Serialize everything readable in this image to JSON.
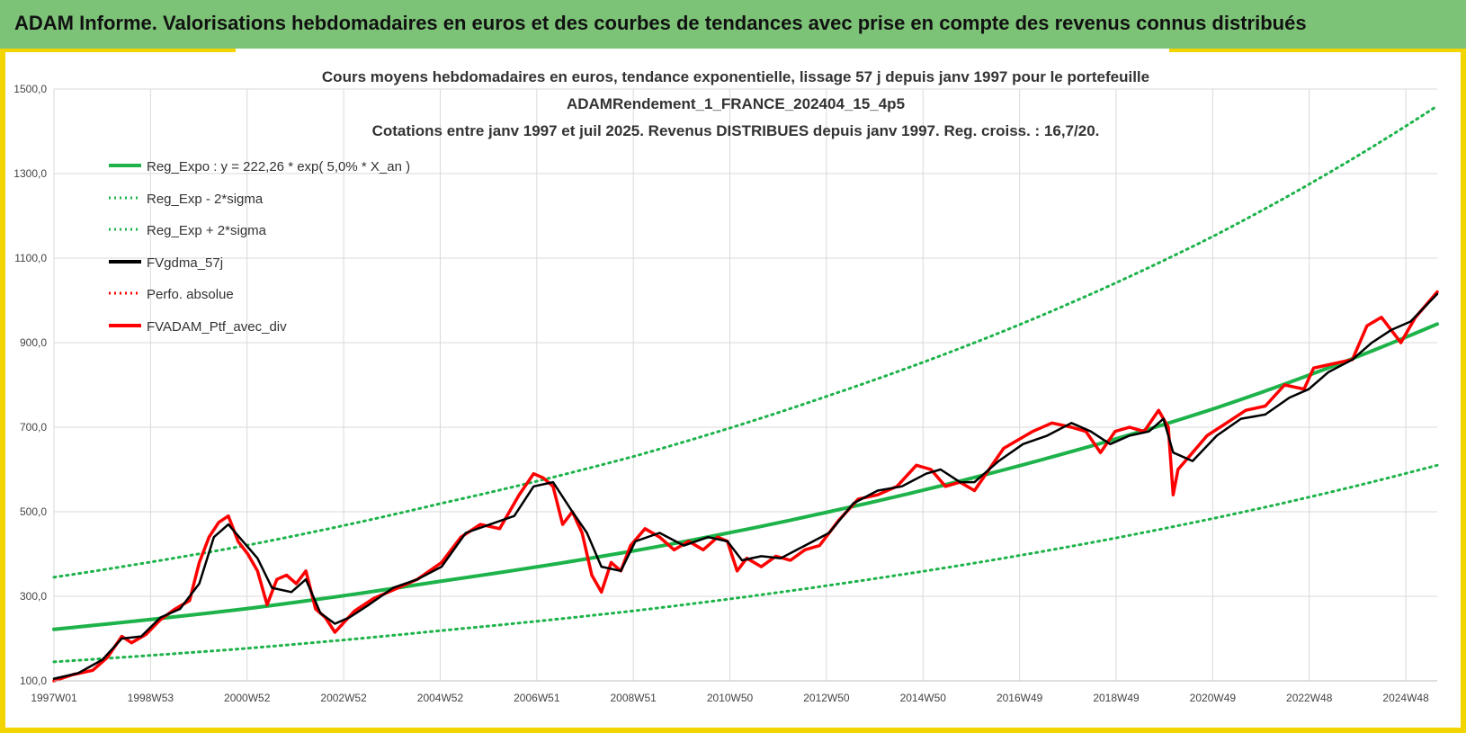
{
  "header": {
    "title": "ADAM Informe. Valorisations hebdomadaires en euros et des courbes de tendances avec prise en compte des revenus connus distribués"
  },
  "colors": {
    "banner": "#7cc377",
    "frame": "#f2d400",
    "trend_green": "#1db34a",
    "smooth_black": "#000000",
    "portfolio_red": "#ff0000",
    "grid": "#d9d9d9"
  },
  "chart_data": {
    "type": "line",
    "title_lines": [
      "Cours moyens hebdomadaires  en euros, tendance exponentielle, lissage 57 j depuis janv 1997 pour le portefeuille",
      "ADAMRendement_1_FRANCE_202404_15_4p5",
      "Cotations  entre janv 1997 et juil 2025. Revenus DISTRIBUES depuis janv 1997. Reg. croiss. : 16,7/20."
    ],
    "ylim": [
      100,
      1500
    ],
    "y_ticks": [
      "100,0",
      "300,0",
      "500,0",
      "700,0",
      "900,0",
      "1100,0",
      "1300,0",
      "1500,0"
    ],
    "x_ticks": [
      "1997W01",
      "1998W53",
      "2000W52",
      "2002W52",
      "2004W52",
      "2006W51",
      "2008W51",
      "2010W50",
      "2012W50",
      "2014W50",
      "2016W49",
      "2018W49",
      "2020W49",
      "2022W48",
      "2024W48"
    ],
    "x_range_years": [
      1997.0,
      2025.55
    ],
    "grid": true,
    "legend_position": "top-left",
    "legend": [
      {
        "label": "Reg_Expo : y = 222,26 * exp( 5,0% *  X_an )",
        "style": "solid-green"
      },
      {
        "label": "Reg_Exp - 2*sigma",
        "style": "dotted-green"
      },
      {
        "label": "Reg_Exp + 2*sigma",
        "style": "dotted-green"
      },
      {
        "label": "FVgdma_57j",
        "style": "solid-black"
      },
      {
        "label": "Perfo. absolue",
        "style": "dotted-red"
      },
      {
        "label": "FVADAM_Ptf_avec_div",
        "style": "solid-red"
      }
    ],
    "series": [
      {
        "name": "Reg_Expo : y = 222,26 * exp( 5,0% *  X_an )",
        "x": [
          1997,
          2001,
          2005,
          2009,
          2013,
          2017,
          2021,
          2025.55
        ],
        "y": [
          222,
          271,
          336,
          408,
          500,
          611,
          746,
          944
        ]
      },
      {
        "name": "Reg_Exp - 2*sigma",
        "x": [
          1997,
          2001,
          2005,
          2009,
          2013,
          2017,
          2021,
          2025.55
        ],
        "y": [
          145,
          177,
          219,
          266,
          326,
          398,
          486,
          610
        ]
      },
      {
        "name": "Reg_Exp + 2*sigma",
        "x": [
          1997,
          2001,
          2005,
          2009,
          2013,
          2017,
          2021,
          2025.55
        ],
        "y": [
          345,
          421,
          520,
          632,
          775,
          946,
          1156,
          1460
        ]
      },
      {
        "name": "FVgdma_57j",
        "x": [
          1997.0,
          1997.5,
          1998.0,
          1998.4,
          1998.8,
          1999.2,
          1999.6,
          2000.0,
          2000.3,
          2000.6,
          2000.9,
          2001.2,
          2001.5,
          2001.9,
          2002.2,
          2002.5,
          2002.8,
          2003.1,
          2003.5,
          2004.0,
          2004.5,
          2005.0,
          2005.5,
          2006.0,
          2006.5,
          2006.9,
          2007.3,
          2007.7,
          2008.0,
          2008.3,
          2008.7,
          2009.0,
          2009.5,
          2010.0,
          2010.5,
          2010.9,
          2011.2,
          2011.6,
          2012.0,
          2012.5,
          2013.0,
          2013.5,
          2014.0,
          2014.5,
          2015.0,
          2015.3,
          2015.7,
          2016.0,
          2016.5,
          2017.0,
          2017.5,
          2018.0,
          2018.4,
          2018.8,
          2019.2,
          2019.6,
          2019.9,
          2020.1,
          2020.5,
          2021.0,
          2021.5,
          2022.0,
          2022.5,
          2022.9,
          2023.3,
          2023.8,
          2024.2,
          2024.6,
          2025.0,
          2025.55
        ],
        "y": [
          105,
          118,
          150,
          200,
          205,
          250,
          270,
          330,
          440,
          470,
          430,
          390,
          320,
          310,
          340,
          260,
          235,
          250,
          280,
          320,
          340,
          370,
          450,
          470,
          490,
          560,
          570,
          500,
          450,
          370,
          360,
          430,
          450,
          420,
          440,
          430,
          385,
          395,
          390,
          420,
          450,
          520,
          550,
          560,
          590,
          600,
          570,
          570,
          620,
          660,
          680,
          710,
          690,
          660,
          680,
          690,
          720,
          640,
          620,
          680,
          720,
          730,
          770,
          790,
          830,
          860,
          900,
          930,
          950,
          1015
        ]
      },
      {
        "name": "FVADAM_Ptf_avec_div",
        "x": [
          1997.0,
          1997.4,
          1997.8,
          1998.1,
          1998.4,
          1998.6,
          1998.9,
          1999.2,
          1999.5,
          1999.8,
          2000.0,
          2000.2,
          2000.4,
          2000.6,
          2000.8,
          2001.0,
          2001.2,
          2001.4,
          2001.6,
          2001.8,
          2002.0,
          2002.2,
          2002.4,
          2002.6,
          2002.8,
          2003.0,
          2003.2,
          2003.6,
          2004.0,
          2004.5,
          2005.0,
          2005.4,
          2005.8,
          2006.2,
          2006.6,
          2006.9,
          2007.1,
          2007.3,
          2007.5,
          2007.7,
          2007.9,
          2008.1,
          2008.3,
          2008.5,
          2008.7,
          2008.9,
          2009.2,
          2009.5,
          2009.8,
          2010.1,
          2010.4,
          2010.7,
          2010.9,
          2011.1,
          2011.3,
          2011.6,
          2011.9,
          2012.2,
          2012.5,
          2012.8,
          2013.2,
          2013.6,
          2014.0,
          2014.4,
          2014.8,
          2015.1,
          2015.4,
          2015.7,
          2016.0,
          2016.3,
          2016.6,
          2016.9,
          2017.2,
          2017.6,
          2018.0,
          2018.3,
          2018.6,
          2018.9,
          2019.2,
          2019.5,
          2019.8,
          2020.0,
          2020.1,
          2020.2,
          2020.5,
          2020.8,
          2021.2,
          2021.6,
          2022.0,
          2022.4,
          2022.8,
          2023.0,
          2023.4,
          2023.8,
          2024.1,
          2024.4,
          2024.6,
          2024.8,
          2025.1,
          2025.55
        ],
        "y": [
          100,
          115,
          125,
          155,
          205,
          190,
          210,
          245,
          270,
          290,
          380,
          440,
          475,
          490,
          430,
          400,
          360,
          280,
          340,
          350,
          330,
          360,
          270,
          250,
          215,
          240,
          265,
          295,
          315,
          340,
          380,
          440,
          470,
          460,
          540,
          590,
          580,
          560,
          470,
          500,
          450,
          350,
          310,
          380,
          360,
          420,
          460,
          440,
          410,
          430,
          410,
          440,
          430,
          360,
          390,
          370,
          395,
          385,
          410,
          420,
          480,
          530,
          540,
          560,
          610,
          600,
          560,
          570,
          550,
          600,
          650,
          670,
          690,
          710,
          700,
          690,
          640,
          690,
          700,
          690,
          740,
          700,
          540,
          600,
          640,
          680,
          710,
          740,
          750,
          800,
          790,
          840,
          850,
          860,
          940,
          960,
          930,
          900,
          960,
          1020
        ]
      }
    ]
  }
}
